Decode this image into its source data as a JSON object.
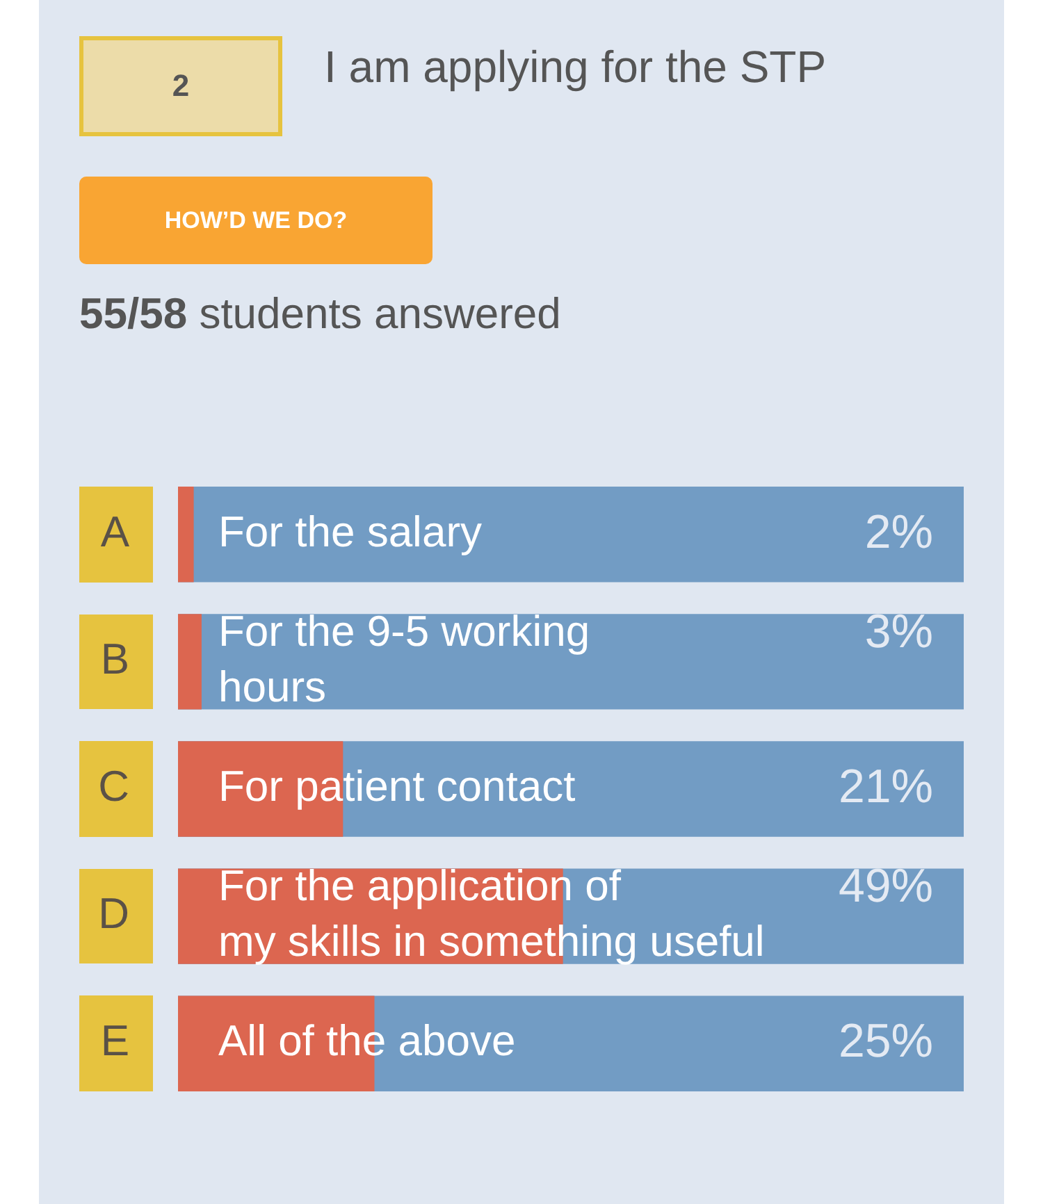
{
  "chart_data": {
    "type": "bar",
    "orientation": "horizontal",
    "title": "I am applying for the STP",
    "subtitle": "55/58 students answered",
    "categories": [
      "A",
      "B",
      "C",
      "D",
      "E"
    ],
    "series": [
      {
        "color": "#dc6650",
        "values": [
          2,
          3,
          21,
          49,
          25
        ],
        "value_labels": [
          "2%",
          "3%",
          "21%",
          "49%",
          "25%"
        ]
      }
    ],
    "xlim": [
      0,
      100
    ],
    "tick_labels": "y",
    "annotations": [
      "2",
      "HOW’D WE DO?",
      "For the salary",
      "For the 9-5 working\nhours",
      "For patient contact",
      "For the application of\nmy skills in something useful",
      "All of the above"
    ]
  }
}
